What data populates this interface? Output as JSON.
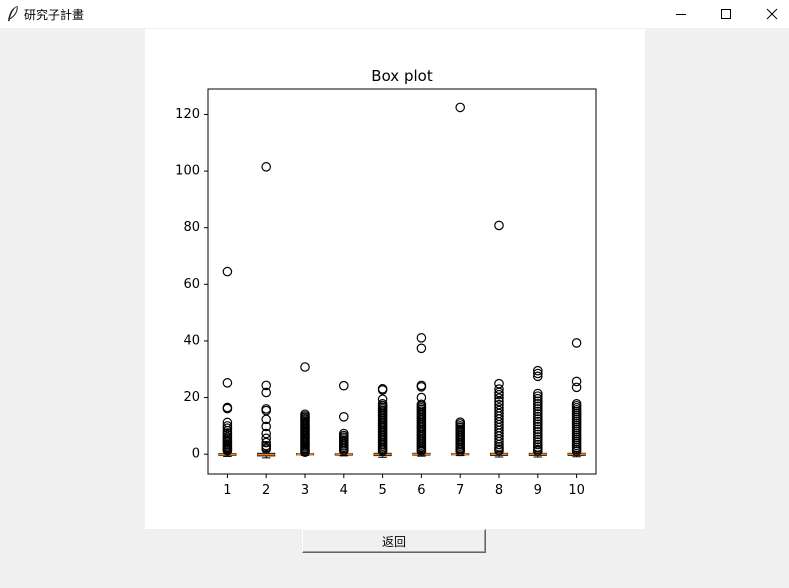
{
  "window": {
    "title": "研究子計畫",
    "icon": "feather-icon",
    "controls": [
      "minimize-icon",
      "maximize-icon",
      "close-icon"
    ]
  },
  "chart_data": {
    "type": "box",
    "title": "Box plot",
    "xlabel": "",
    "ylabel": "",
    "categories": [
      "1",
      "2",
      "3",
      "4",
      "5",
      "6",
      "7",
      "8",
      "9",
      "10"
    ],
    "ylim": [
      -7,
      129
    ],
    "yticks": [
      0,
      20,
      40,
      60,
      80,
      100,
      120
    ],
    "colors": {
      "median": "#ff7f0e",
      "box": "#000000",
      "flier": "#000000"
    },
    "boxes": [
      {
        "category": "1",
        "whisker_low": -0.8,
        "q1": -0.4,
        "median": -0.1,
        "q3": 0.2,
        "whisker_high": 0.8,
        "outliers": [
          64.5,
          25.2,
          16.5,
          16.1,
          11.2,
          10,
          9.2,
          8.3,
          7.5,
          6.8,
          6,
          5.4,
          4.9,
          4.4,
          3.9,
          3.4,
          2.9,
          2.4,
          2,
          1.6,
          1.2
        ]
      },
      {
        "category": "2",
        "whisker_low": -1.3,
        "q1": -0.6,
        "median": -0.2,
        "q3": 0.3,
        "whisker_high": 1.2,
        "outliers": [
          101.5,
          24.3,
          21.8,
          16,
          15.4,
          12.3,
          9.8,
          7.3,
          5.6,
          4.1,
          3,
          2.3,
          1.8
        ]
      },
      {
        "category": "3",
        "whisker_low": -0.4,
        "q1": -0.2,
        "median": 0,
        "q3": 0.2,
        "whisker_high": 0.5,
        "outliers": [
          30.8,
          14.1,
          13.5,
          13,
          12.5,
          12,
          11.5,
          11,
          10.5,
          10,
          9.5,
          9,
          8.5,
          8,
          7.5,
          7,
          6.5,
          6,
          5.5,
          5,
          4.5,
          4,
          3.5,
          3,
          2.5,
          2,
          1.5,
          1,
          0.7
        ]
      },
      {
        "category": "4",
        "whisker_low": -0.6,
        "q1": -0.3,
        "median": 0,
        "q3": 0.2,
        "whisker_high": 0.6,
        "outliers": [
          24.2,
          13.2,
          7.3,
          6.6,
          6,
          5.4,
          4.8,
          4.2,
          3.6,
          3,
          2.4,
          1.8,
          1.2
        ]
      },
      {
        "category": "5",
        "whisker_low": -1.1,
        "q1": -0.5,
        "median": -0.1,
        "q3": 0.3,
        "whisker_high": 0.8,
        "outliers": [
          23.1,
          22.7,
          19.4,
          17.8,
          17.2,
          16.6,
          16,
          15.4,
          14.8,
          14.2,
          13.6,
          13,
          12.4,
          11.8,
          11.2,
          10.6,
          10,
          9.4,
          8.8,
          8.2,
          7.6,
          7,
          6.4,
          5.8,
          5.2,
          4.6,
          4,
          3.4,
          2.8,
          2.2,
          1.6,
          1.1
        ]
      },
      {
        "category": "6",
        "whisker_low": -0.7,
        "q1": -0.3,
        "median": 0,
        "q3": 0.3,
        "whisker_high": 0.8,
        "outliers": [
          41.1,
          37.4,
          24.3,
          23.8,
          20,
          17.6,
          17,
          16.4,
          15.8,
          15.2,
          14.6,
          14,
          13.4,
          12.8,
          12.2,
          11.6,
          11,
          10.4,
          9.8,
          9.2,
          8.6,
          8,
          7.4,
          6.8,
          6.2,
          5.6,
          5,
          4.4,
          3.8,
          3.2,
          2.6,
          2,
          1.5,
          1.1
        ]
      },
      {
        "category": "7",
        "whisker_low": -0.5,
        "q1": -0.2,
        "median": 0,
        "q3": 0.2,
        "whisker_high": 0.6,
        "outliers": [
          122.5,
          11.3,
          10.7,
          10,
          9.4,
          8.8,
          8.2,
          7.6,
          7,
          6.4,
          5.8,
          5.2,
          4.6,
          4,
          3.4,
          2.8,
          2.2,
          1.6,
          1
        ]
      },
      {
        "category": "8",
        "whisker_low": -1,
        "q1": -0.4,
        "median": 0,
        "q3": 0.3,
        "whisker_high": 0.9,
        "outliers": [
          80.8,
          24.9,
          23,
          21.8,
          21,
          19.8,
          18.6,
          17.5,
          16.4,
          15.4,
          14.4,
          13.4,
          12.4,
          11.4,
          10.4,
          9.4,
          8.4,
          7.4,
          6.4,
          5.4,
          4.4,
          3.4,
          2.6,
          1.8,
          1.2
        ]
      },
      {
        "category": "9",
        "whisker_low": -1,
        "q1": -0.4,
        "median": 0,
        "q3": 0.3,
        "whisker_high": 0.9,
        "outliers": [
          29.5,
          28.5,
          27.5,
          21.4,
          20.5,
          19.6,
          18.7,
          17.8,
          16.9,
          16,
          15.1,
          14.2,
          13.3,
          12.4,
          11.5,
          10.6,
          9.7,
          8.8,
          7.9,
          7,
          6.1,
          5.2,
          4.3,
          3.4,
          2.5,
          1.7,
          1.1
        ]
      },
      {
        "category": "10",
        "whisker_low": -0.9,
        "q1": -0.4,
        "median": 0,
        "q3": 0.3,
        "whisker_high": 0.8,
        "outliers": [
          39.3,
          25.7,
          23.6,
          17.8,
          17.1,
          16.4,
          15.7,
          15,
          14.3,
          13.6,
          12.9,
          12.2,
          11.5,
          10.8,
          10.1,
          9.4,
          8.7,
          8,
          7.3,
          6.6,
          5.9,
          5.2,
          4.5,
          3.8,
          3.1,
          2.4,
          1.7,
          1.1
        ]
      }
    ]
  },
  "buttons": {
    "back_label": "返回"
  }
}
